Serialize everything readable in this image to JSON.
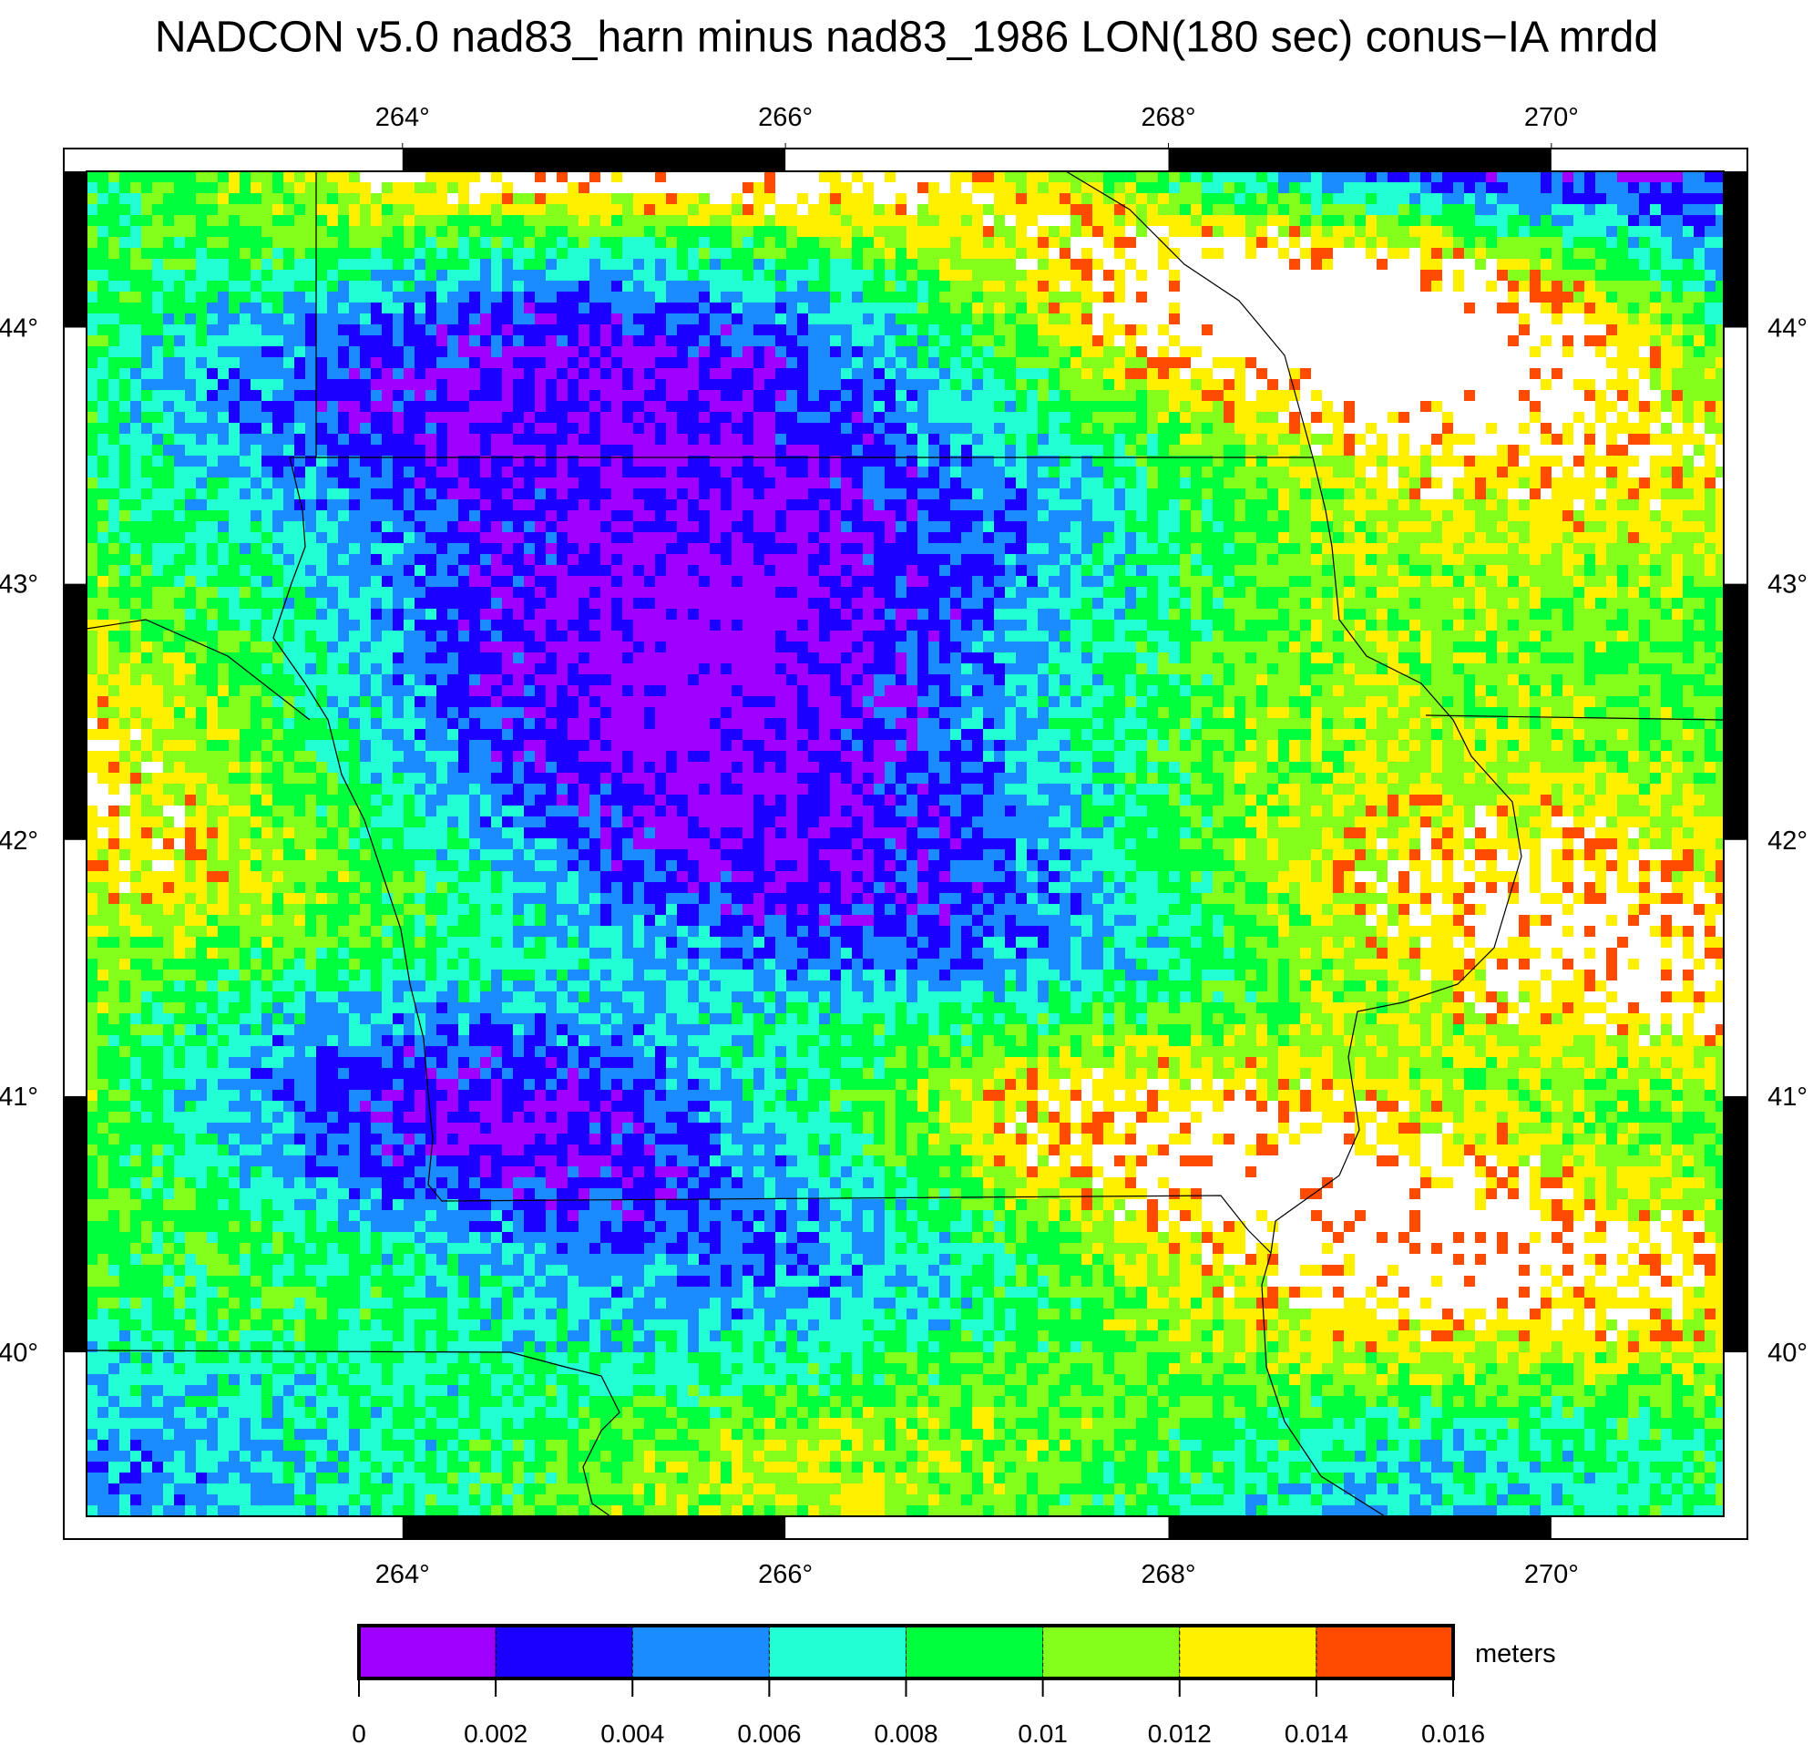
{
  "map": {
    "title": "NADCON v5.0 nad83_harn minus nad83_1986 LON(180 sec) conus−IA mrdd",
    "xlim": [
      262.35,
      270.9
    ],
    "ylim": [
      39.36,
      44.61
    ],
    "xticks": [
      {
        "value": 264,
        "label": "264°"
      },
      {
        "value": 266,
        "label": "266°"
      },
      {
        "value": 268,
        "label": "268°"
      },
      {
        "value": 270,
        "label": "270°"
      }
    ],
    "yticks": [
      {
        "value": 40,
        "label": "40°"
      },
      {
        "value": 41,
        "label": "41°"
      },
      {
        "value": 42,
        "label": "42°"
      },
      {
        "value": 43,
        "label": "43°"
      },
      {
        "value": 44,
        "label": "44°"
      }
    ],
    "colorbar": {
      "label": "meters",
      "ticks": [
        0,
        0.002,
        0.004,
        0.006,
        0.008,
        0.01,
        0.012,
        0.014,
        0.016
      ],
      "colors": [
        "#a000ff",
        "#1c00ff",
        "#1a8cff",
        "#22ffd4",
        "#00ff3c",
        "#84ff1c",
        "#fff000",
        "#ff4a00"
      ]
    }
  }
}
